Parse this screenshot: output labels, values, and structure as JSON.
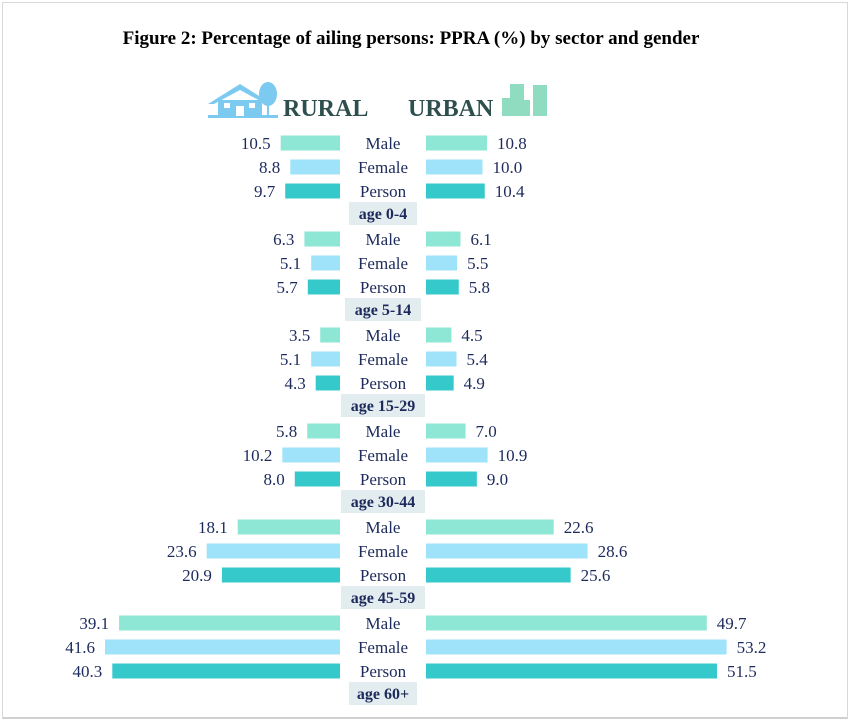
{
  "chart_data": {
    "type": "bar",
    "orientation": "horizontal-butterfly",
    "title": "Figure 2: Percentage of ailing persons: PPRA (%) by sector and gender",
    "sectors": [
      "RURAL",
      "URBAN"
    ],
    "sector_icons": [
      "house-tree-icon",
      "city-buildings-icon"
    ],
    "genders": [
      "Male",
      "Female",
      "Person"
    ],
    "colors": {
      "Male": "#8ee6d4",
      "Female": "#9fe3fa",
      "Person": "#36c9cc",
      "text": "#1d2a5c",
      "label_bg": "#e3ecee",
      "sector_text": "#2f4f4f",
      "rural_icon": "#7ccaf0",
      "urban_icon": "#8fdcc0"
    },
    "groups": [
      {
        "label": "age 0-4",
        "rural": [
          10.5,
          8.8,
          9.7
        ],
        "urban": [
          10.8,
          10.0,
          10.4
        ]
      },
      {
        "label": "age 5-14",
        "rural": [
          6.3,
          5.1,
          5.7
        ],
        "urban": [
          6.1,
          5.5,
          5.8
        ]
      },
      {
        "label": "age 15-29",
        "rural": [
          3.5,
          5.1,
          4.3
        ],
        "urban": [
          4.5,
          5.4,
          4.9
        ]
      },
      {
        "label": "age 30-44",
        "rural": [
          5.8,
          10.2,
          8.0
        ],
        "urban": [
          7.0,
          10.9,
          9.0
        ]
      },
      {
        "label": "age 45-59",
        "rural": [
          18.1,
          23.6,
          20.9
        ],
        "urban": [
          22.6,
          28.6,
          25.6
        ]
      },
      {
        "label": "age 60+",
        "rural": [
          39.1,
          41.6,
          40.3
        ],
        "urban": [
          49.7,
          53.2,
          51.5
        ]
      }
    ]
  }
}
